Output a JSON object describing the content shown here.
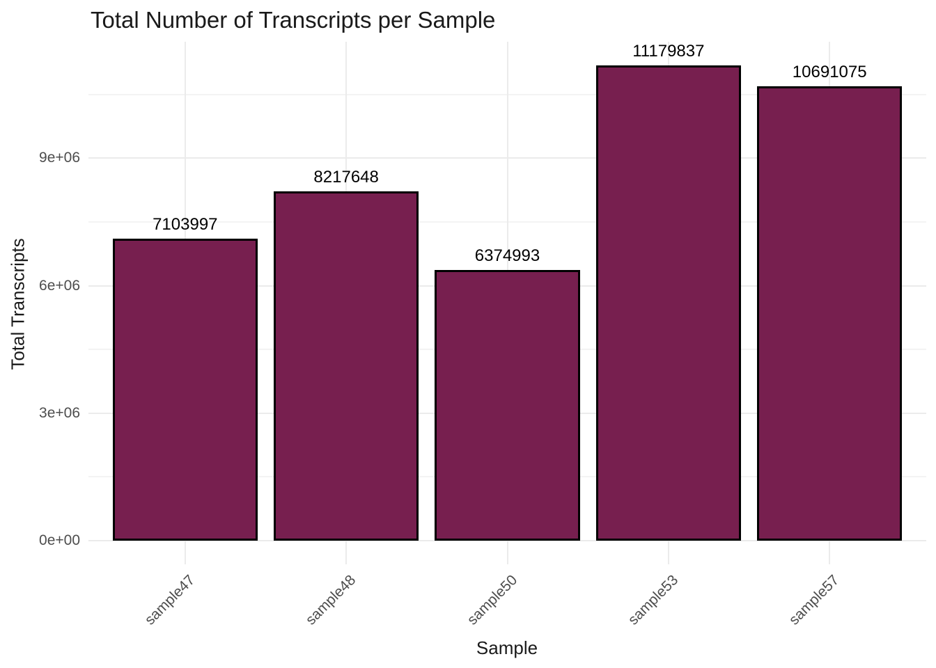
{
  "chart_data": {
    "type": "bar",
    "title": "Total Number of Transcripts per Sample",
    "xlabel": "Sample",
    "ylabel": "Total Transcripts",
    "categories": [
      "sample47",
      "sample48",
      "sample50",
      "sample53",
      "sample57"
    ],
    "values": [
      7103997,
      8217648,
      6374993,
      11179837,
      10691075
    ],
    "bar_labels": [
      "7103997",
      "8217648",
      "6374993",
      "11179837",
      "10691075"
    ],
    "y_ticks": [
      {
        "value": 0,
        "label": "0e+00"
      },
      {
        "value": 3000000,
        "label": "3e+06"
      },
      {
        "value": 6000000,
        "label": "6e+06"
      },
      {
        "value": 9000000,
        "label": "9e+06"
      }
    ],
    "y_minor_ticks": [
      1500000,
      4500000,
      7500000,
      10500000
    ],
    "ylim": [
      0,
      11738829
    ],
    "grid": "on",
    "legend_position": "none",
    "bar_width_fraction": 0.9,
    "colors": {
      "bar_fill": "#771F4F",
      "bar_stroke": "#000000",
      "grid_major": "#EBEBEB",
      "grid_minor": "#F3F3F3",
      "tick_text": "#4D4D4D",
      "title_text": "#1A1A1A",
      "background": "#FFFFFF"
    }
  }
}
